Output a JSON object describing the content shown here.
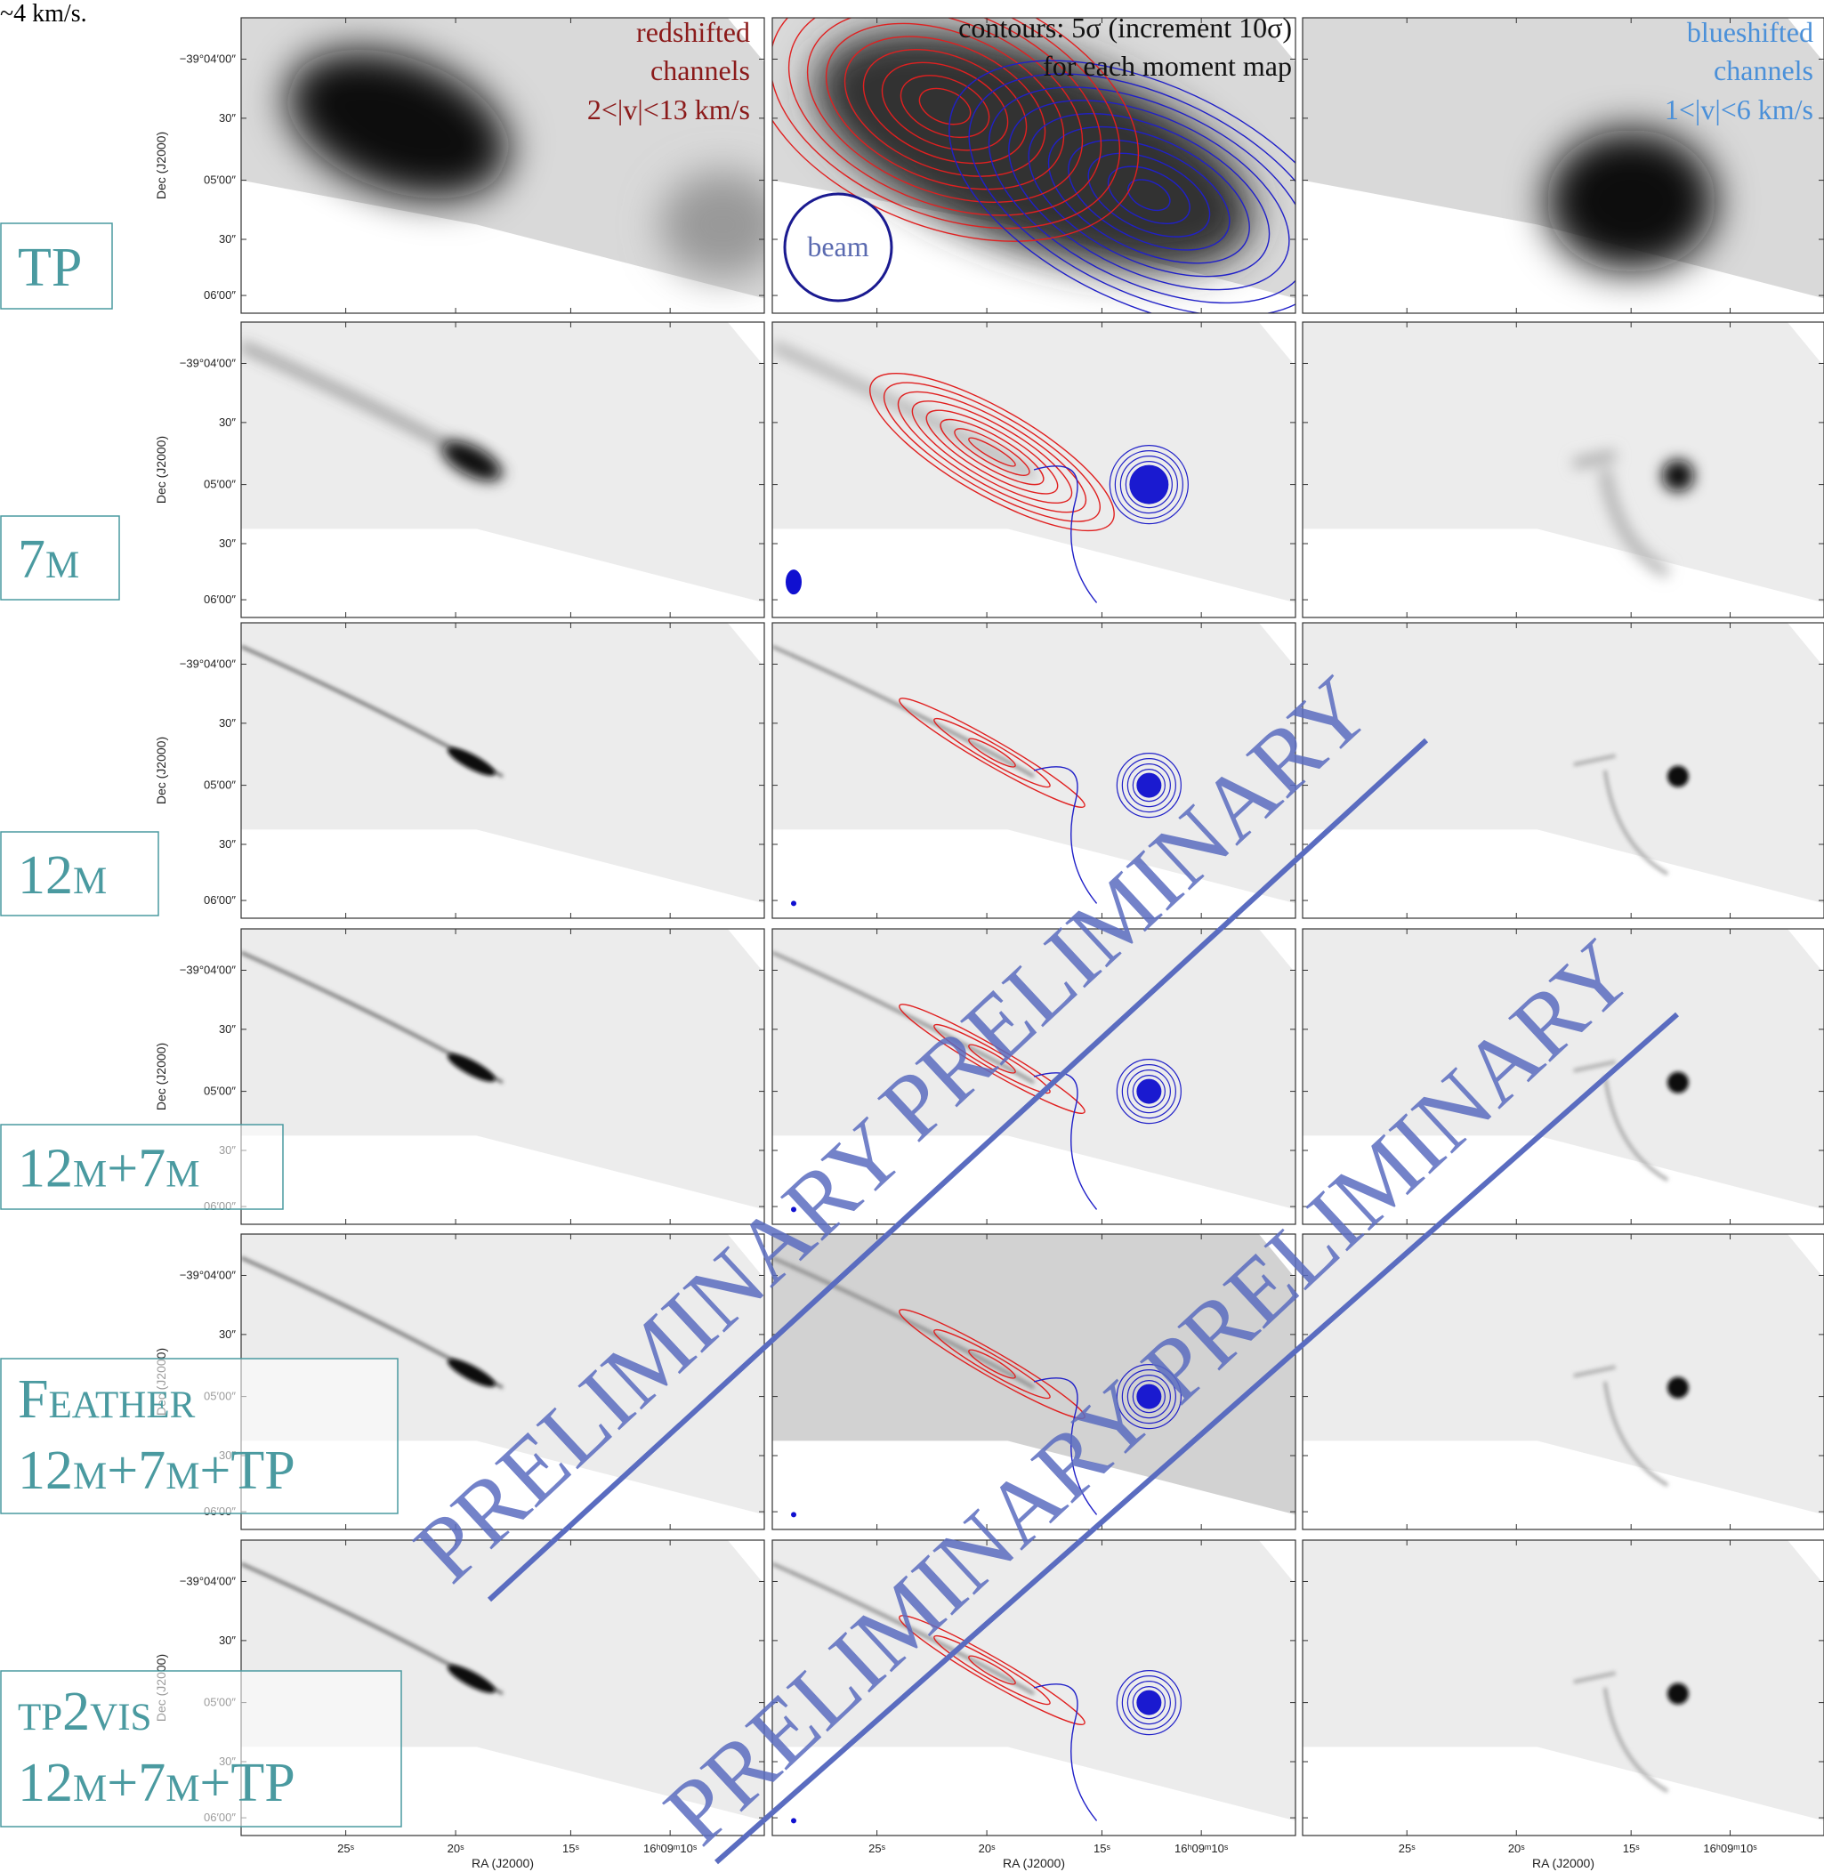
{
  "caption_fragment": "~4 km/s.",
  "rows": [
    {
      "label": [
        "TP"
      ]
    },
    {
      "label": [
        "7m"
      ]
    },
    {
      "label": [
        "12m"
      ]
    },
    {
      "label": [
        "12m+7m"
      ]
    },
    {
      "label": [
        "Feather",
        "12m+7m+TP"
      ]
    },
    {
      "label": [
        "tp2vis",
        "12m+7m+TP"
      ]
    }
  ],
  "annotations": {
    "redshifted": [
      "redshifted",
      "channels",
      "2<|v|<13 km/s"
    ],
    "contours": [
      "contours: 5σ (increment 10σ)",
      "for each moment map"
    ],
    "blueshifted": [
      "blueshifted",
      "channels",
      "1<|v|<6 km/s"
    ],
    "beam": "beam"
  },
  "axes": {
    "y_label": "Dec (J2000)",
    "y_ticks": [
      "−39°04′00″",
      "30″",
      "05′00″",
      "30″",
      "06′00″"
    ],
    "x_label": "RA (J2000)",
    "x_ticks": [
      "25ˢ",
      "20ˢ",
      "15ˢ",
      "16ʰ09ᵐ10ˢ"
    ]
  },
  "watermark": "PRELIMINARY"
}
